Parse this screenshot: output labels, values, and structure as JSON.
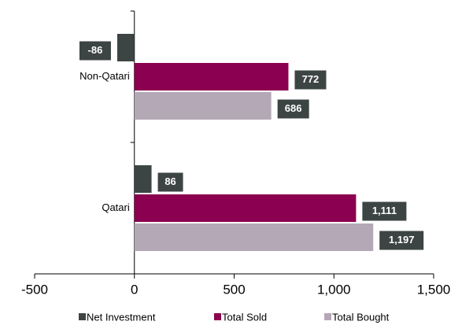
{
  "chart_data": {
    "type": "barh",
    "categories": [
      "Non-Qatari",
      "Qatari"
    ],
    "series": [
      {
        "name": "Net Investment",
        "color": "#3d4544",
        "values": [
          -86,
          86
        ]
      },
      {
        "name": "Total Sold",
        "color": "#8b0050",
        "values": [
          772,
          1111
        ],
        "value_labels": [
          "772",
          "1,111"
        ]
      },
      {
        "name": "Total Bought",
        "color": "#b4a7b6",
        "values": [
          686,
          1197
        ],
        "value_labels": [
          "686",
          "1,197"
        ]
      }
    ],
    "xlim": [
      -500,
      1500
    ],
    "xticks": [
      -500,
      0,
      500,
      {
        "value": 1000,
        "label": "1,000"
      },
      {
        "value": 1500,
        "label": "1,500"
      }
    ],
    "legend": "bottom"
  }
}
